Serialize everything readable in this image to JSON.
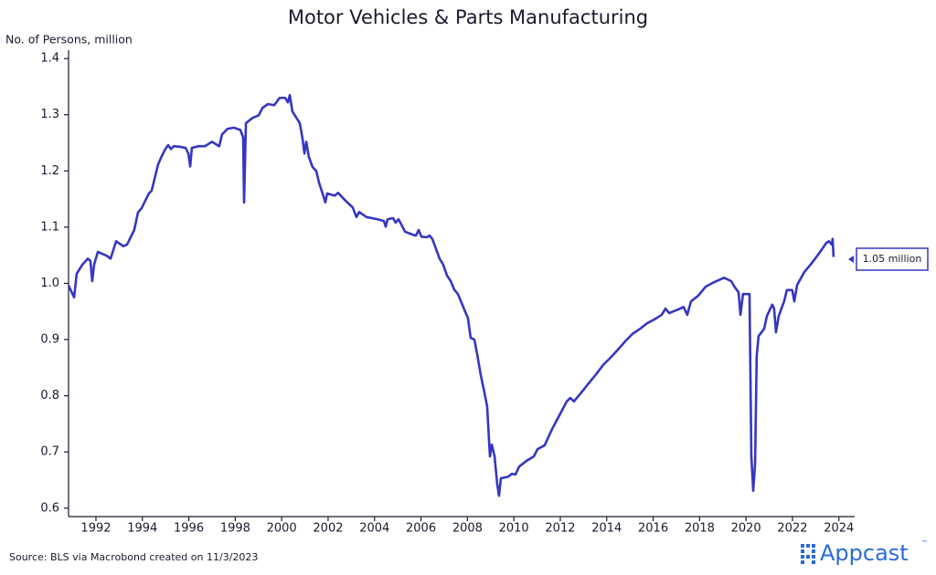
{
  "chart_data": {
    "type": "line",
    "title": "Motor Vehicles & Parts Manufacturing",
    "ylabel": "No. of Persons, million",
    "source": "Source: BLS via Macrobond created on 11/3/2023",
    "brand": "Appcast",
    "brand_mark": "™",
    "annotation": "1.05 million",
    "color": "#3636c2",
    "x": [
      1990.82,
      1991.06,
      1991.17,
      1991.41,
      1991.65,
      1991.76,
      1991.84,
      1991.92,
      1992.08,
      1992.47,
      1992.63,
      1992.87,
      1993.18,
      1993.34,
      1993.65,
      1993.81,
      1993.97,
      1994.28,
      1994.4,
      1994.56,
      1994.68,
      1994.83,
      1994.99,
      1995.11,
      1995.23,
      1995.35,
      1995.62,
      1995.86,
      1995.98,
      1996.06,
      1996.13,
      1996.41,
      1996.69,
      1997.0,
      1997.31,
      1997.43,
      1997.67,
      1997.94,
      1998.22,
      1998.34,
      1998.38,
      1998.46,
      1998.73,
      1999.01,
      1999.17,
      1999.4,
      1999.68,
      1999.91,
      2000.15,
      2000.27,
      2000.35,
      2000.46,
      2000.78,
      2000.9,
      2000.98,
      2001.06,
      2001.17,
      2001.33,
      2001.49,
      2001.61,
      2001.76,
      2001.88,
      2001.96,
      2002.28,
      2002.43,
      2002.75,
      2003.06,
      2003.22,
      2003.34,
      2003.65,
      2004.13,
      2004.4,
      2004.48,
      2004.56,
      2004.8,
      2004.91,
      2005.03,
      2005.15,
      2005.31,
      2005.62,
      2005.78,
      2005.9,
      2006.02,
      2006.25,
      2006.37,
      2006.49,
      2006.65,
      2006.8,
      2006.96,
      2007.12,
      2007.28,
      2007.43,
      2007.59,
      2007.75,
      2007.91,
      2008.02,
      2008.14,
      2008.3,
      2008.42,
      2008.57,
      2008.73,
      2008.85,
      2008.97,
      2009.05,
      2009.17,
      2009.28,
      2009.36,
      2009.44,
      2009.76,
      2009.91,
      2010.07,
      2010.23,
      2010.54,
      2010.86,
      2011.02,
      2011.33,
      2011.65,
      2011.96,
      2012.28,
      2012.43,
      2012.59,
      2012.91,
      2013.22,
      2013.54,
      2013.85,
      2014.17,
      2014.48,
      2014.8,
      2015.11,
      2015.43,
      2015.74,
      2016.06,
      2016.37,
      2016.53,
      2016.69,
      2017.16,
      2017.31,
      2017.47,
      2017.63,
      2017.94,
      2018.26,
      2018.57,
      2018.89,
      2019.05,
      2019.36,
      2019.52,
      2019.68,
      2019.76,
      2019.87,
      2020.15,
      2020.23,
      2020.31,
      2020.39,
      2020.46,
      2020.54,
      2020.78,
      2020.9,
      2021.13,
      2021.21,
      2021.29,
      2021.41,
      2021.64,
      2021.76,
      2021.99,
      2022.08,
      2022.2,
      2022.51,
      2022.83,
      2023.14,
      2023.46,
      2023.57,
      2023.69,
      2023.73,
      2023.77
    ],
    "values": [
      0.996,
      0.975,
      1.017,
      1.033,
      1.044,
      1.04,
      1.004,
      1.033,
      1.056,
      1.049,
      1.044,
      1.075,
      1.066,
      1.069,
      1.095,
      1.126,
      1.134,
      1.16,
      1.165,
      1.192,
      1.212,
      1.226,
      1.239,
      1.246,
      1.239,
      1.244,
      1.243,
      1.241,
      1.231,
      1.208,
      1.241,
      1.244,
      1.244,
      1.252,
      1.244,
      1.265,
      1.275,
      1.277,
      1.273,
      1.26,
      1.144,
      1.285,
      1.294,
      1.299,
      1.312,
      1.319,
      1.317,
      1.33,
      1.33,
      1.322,
      1.335,
      1.306,
      1.285,
      1.257,
      1.231,
      1.252,
      1.225,
      1.207,
      1.2,
      1.179,
      1.16,
      1.144,
      1.16,
      1.156,
      1.161,
      1.147,
      1.135,
      1.118,
      1.127,
      1.118,
      1.114,
      1.111,
      1.101,
      1.114,
      1.116,
      1.108,
      1.114,
      1.105,
      1.092,
      1.087,
      1.085,
      1.095,
      1.083,
      1.082,
      1.085,
      1.079,
      1.061,
      1.044,
      1.033,
      1.014,
      1.004,
      0.989,
      0.981,
      0.965,
      0.949,
      0.939,
      0.903,
      0.9,
      0.874,
      0.838,
      0.806,
      0.781,
      0.692,
      0.713,
      0.692,
      0.644,
      0.622,
      0.653,
      0.656,
      0.661,
      0.66,
      0.674,
      0.684,
      0.692,
      0.705,
      0.712,
      0.741,
      0.765,
      0.79,
      0.796,
      0.79,
      0.806,
      0.822,
      0.838,
      0.855,
      0.868,
      0.882,
      0.897,
      0.91,
      0.919,
      0.929,
      0.936,
      0.944,
      0.955,
      0.947,
      0.955,
      0.958,
      0.944,
      0.968,
      0.978,
      0.994,
      1.001,
      1.007,
      1.01,
      1.004,
      0.993,
      0.984,
      0.944,
      0.981,
      0.981,
      0.692,
      0.631,
      0.679,
      0.871,
      0.906,
      0.919,
      0.942,
      0.962,
      0.955,
      0.913,
      0.942,
      0.968,
      0.988,
      0.988,
      0.968,
      0.997,
      1.02,
      1.036,
      1.053,
      1.072,
      1.075,
      1.069,
      1.079,
      1.047
    ],
    "xlim": [
      1990.82,
      2024.6
    ],
    "ylim": [
      0.585,
      1.41
    ],
    "xticks": [
      1992,
      1994,
      1996,
      1998,
      2000,
      2002,
      2004,
      2006,
      2008,
      2010,
      2012,
      2014,
      2016,
      2018,
      2020,
      2022,
      2024
    ],
    "yticks": [
      0.6,
      0.7,
      0.8,
      0.9,
      {
        "value": 1,
        "label": "1.0"
      },
      1.1,
      1.2,
      1.3,
      1.4
    ]
  }
}
